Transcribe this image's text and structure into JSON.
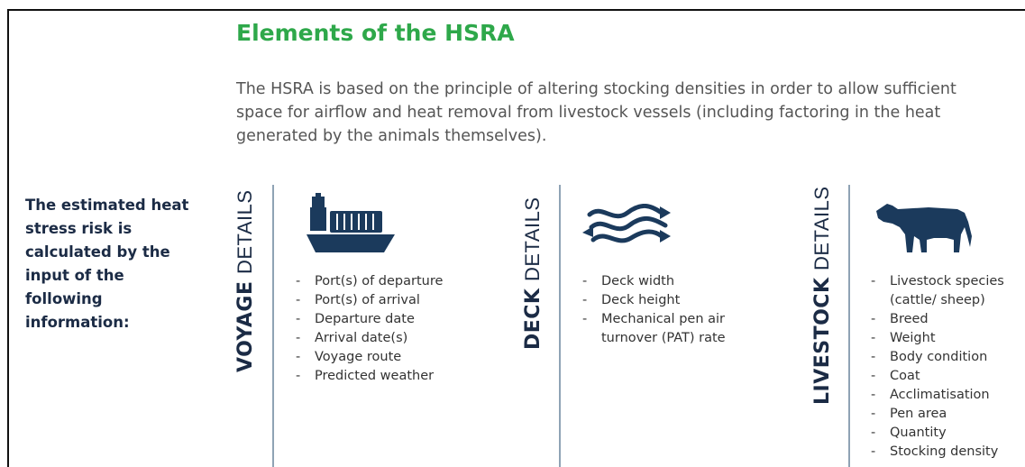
{
  "header": {
    "title": "Elements of the HSRA",
    "intro": "The HSRA is based on the principle of altering stocking densities in order to allow sufficient space for airflow and heat removal from livestock vessels (including factoring in the heat generated by the animals themselves)."
  },
  "side_note": "The estimated heat stress risk is calculated by the input of the following information:",
  "sections": [
    {
      "label_bold": "VOYAGE",
      "label_light": "DETAILS",
      "items": [
        "Port(s) of departure",
        "Port(s) of arrival",
        "Departure date",
        "Arrival date(s)",
        "Voyage route",
        "Predicted weather"
      ]
    },
    {
      "label_bold": "DECK",
      "label_light": "DETAILS",
      "items": [
        "Deck width",
        "Deck height",
        "Mechanical pen air turnover (PAT) rate"
      ]
    },
    {
      "label_bold": "LIVESTOCK",
      "label_light": "DETAILS",
      "items": [
        "Livestock species (cattle/ sheep)",
        "Breed",
        "Weight",
        "Body condition",
        "Coat",
        "Acclimatisation",
        "Pen area",
        "Quantity",
        "Stocking density"
      ]
    }
  ]
}
